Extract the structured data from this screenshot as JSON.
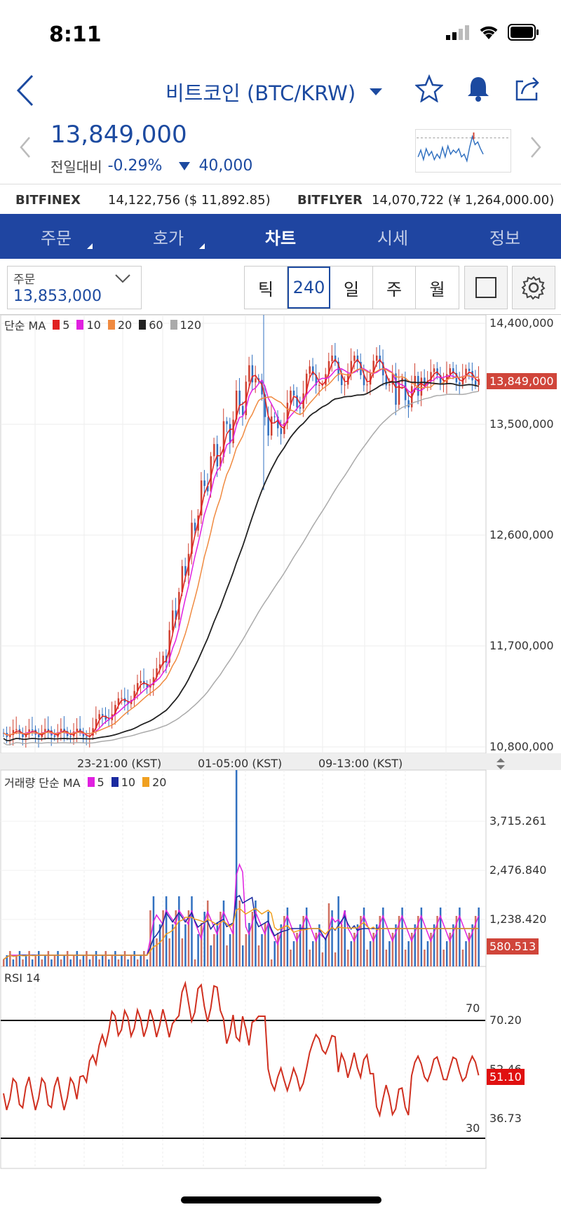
{
  "status": {
    "time": "8:11"
  },
  "header": {
    "title": "비트코인 (BTC/KRW)"
  },
  "price": {
    "current": "13,849,000",
    "change_label": "전일대비",
    "change_pct": "-0.29%",
    "change_abs": "40,000"
  },
  "exchanges": [
    {
      "name": "BITFINEX",
      "value": "14,122,756 ($ 11,892.85)"
    },
    {
      "name": "BITFLYER",
      "value": "14,070,722 (¥ 1,264,000.00)"
    }
  ],
  "tabs": [
    {
      "label": "주문",
      "has_menu": true
    },
    {
      "label": "호가",
      "has_menu": true
    },
    {
      "label": "차트",
      "active": true
    },
    {
      "label": "시세"
    },
    {
      "label": "정보"
    }
  ],
  "toolbar": {
    "order_label": "주문",
    "order_value": "13,853,000",
    "periods": [
      "틱",
      "240",
      "일",
      "주",
      "월"
    ],
    "selected_period": "240"
  },
  "price_chart": {
    "legend_prefix": "단순 MA",
    "ma": [
      {
        "label": "5",
        "color": "#e02020"
      },
      {
        "label": "10",
        "color": "#e020e0"
      },
      {
        "label": "20",
        "color": "#f08a40"
      },
      {
        "label": "60",
        "color": "#222222"
      },
      {
        "label": "120",
        "color": "#aaaaaa"
      }
    ],
    "y_ticks": [
      "14,400,000",
      "13,500,000",
      "12,600,000",
      "11,700,000",
      "10,800,000"
    ],
    "current_tag": "13,849,000"
  },
  "x_axis": {
    "labels": [
      "23-21:00 (KST)",
      "01-05:00 (KST)",
      "09-13:00 (KST)"
    ]
  },
  "volume_chart": {
    "legend_prefix": "거래량 단순 MA",
    "ma": [
      {
        "label": "5",
        "color": "#e020e0"
      },
      {
        "label": "10",
        "color": "#1a2aa0"
      },
      {
        "label": "20",
        "color": "#f0a020"
      }
    ],
    "y_ticks": [
      "3,715.261",
      "2,476.840",
      "1,238.420"
    ],
    "current_tag": "580.513"
  },
  "rsi_chart": {
    "legend": "RSI 14",
    "levels": [
      "70",
      "30"
    ],
    "y_ticks": [
      "70.20",
      "52.46",
      "36.73"
    ],
    "current_tag": "51.10"
  },
  "colors": {
    "brand_blue": "#1f45a1",
    "up": "#d04030",
    "down": "#3070c0"
  }
}
